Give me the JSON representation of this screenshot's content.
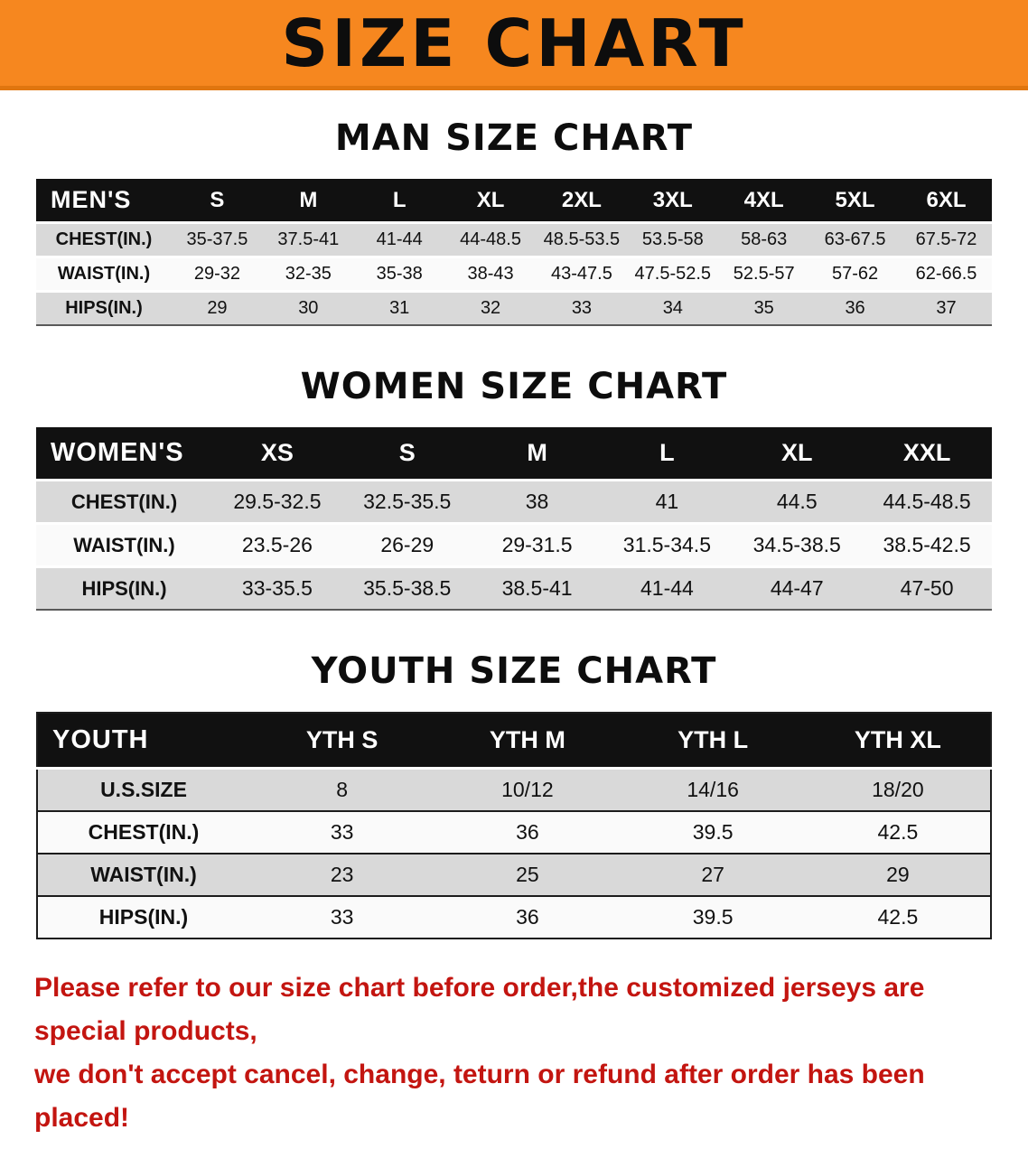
{
  "banner": {
    "title": "SIZE CHART"
  },
  "sections": [
    {
      "heading": "MAN SIZE CHART",
      "table": {
        "name": "mens",
        "label": "MEN'S",
        "columns": [
          "S",
          "M",
          "L",
          "XL",
          "2XL",
          "3XL",
          "4XL",
          "5XL",
          "6XL"
        ],
        "rows": [
          {
            "label": "CHEST(IN.)",
            "values": [
              "35-37.5",
              "37.5-41",
              "41-44",
              "44-48.5",
              "48.5-53.5",
              "53.5-58",
              "58-63",
              "63-67.5",
              "67.5-72"
            ]
          },
          {
            "label": "WAIST(IN.)",
            "values": [
              "29-32",
              "32-35",
              "35-38",
              "38-43",
              "43-47.5",
              "47.5-52.5",
              "52.5-57",
              "57-62",
              "62-66.5"
            ]
          },
          {
            "label": "HIPS(IN.)",
            "values": [
              "29",
              "30",
              "31",
              "32",
              "33",
              "34",
              "35",
              "36",
              "37"
            ]
          }
        ]
      }
    },
    {
      "heading": "WOMEN SIZE CHART",
      "table": {
        "name": "womens",
        "label": "WOMEN'S",
        "columns": [
          "XS",
          "S",
          "M",
          "L",
          "XL",
          "XXL"
        ],
        "rows": [
          {
            "label": "CHEST(IN.)",
            "values": [
              "29.5-32.5",
              "32.5-35.5",
              "38",
              "41",
              "44.5",
              "44.5-48.5"
            ]
          },
          {
            "label": "WAIST(IN.)",
            "values": [
              "23.5-26",
              "26-29",
              "29-31.5",
              "31.5-34.5",
              "34.5-38.5",
              "38.5-42.5"
            ]
          },
          {
            "label": "HIPS(IN.)",
            "values": [
              "33-35.5",
              "35.5-38.5",
              "38.5-41",
              "41-44",
              "44-47",
              "47-50"
            ]
          }
        ]
      }
    },
    {
      "heading": "YOUTH SIZE CHART",
      "table": {
        "name": "youth",
        "label": "YOUTH",
        "columns": [
          "YTH S",
          "YTH M",
          "YTH L",
          "YTH XL"
        ],
        "rows": [
          {
            "label": "U.S.SIZE",
            "values": [
              "8",
              "10/12",
              "14/16",
              "18/20"
            ]
          },
          {
            "label": "CHEST(IN.)",
            "values": [
              "33",
              "36",
              "39.5",
              "42.5"
            ]
          },
          {
            "label": "WAIST(IN.)",
            "values": [
              "23",
              "25",
              "27",
              "29"
            ]
          },
          {
            "label": "HIPS(IN.)",
            "values": [
              "33",
              "36",
              "39.5",
              "42.5"
            ]
          }
        ]
      }
    }
  ],
  "footer": {
    "lines": [
      "Please refer to our size chart before order,the customized jerseys are special products,",
      "we don't accept cancel, change, teturn or refund after order has been placed!"
    ]
  },
  "colors": {
    "banner_orange": "#f6871f",
    "header_black": "#111111",
    "row_gray": "#d9d9d9",
    "footer_red": "#c31510"
  }
}
